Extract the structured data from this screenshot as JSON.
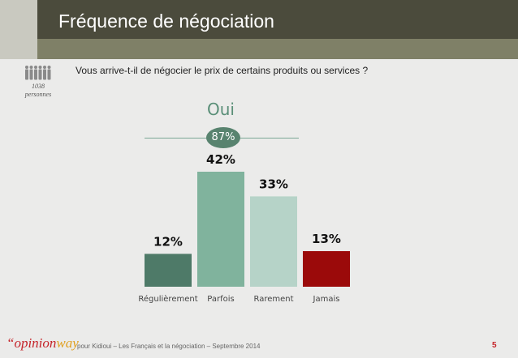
{
  "header": {
    "title": "Fréquence de négociation"
  },
  "sample": {
    "count": "1038",
    "unit": "personnes"
  },
  "question": "Vous arrive-t-il de négocier le prix de certains produits ou services ?",
  "oui": {
    "label": "Oui",
    "value": "87%"
  },
  "chart_data": {
    "type": "bar",
    "categories": [
      "Régulièrement",
      "Parfois",
      "Rarement",
      "Jamais"
    ],
    "values": [
      12,
      42,
      33,
      13
    ],
    "data_labels": [
      "12%",
      "42%",
      "33%",
      "13%"
    ],
    "colors": [
      "#4e7a68",
      "#80b39d",
      "#b6d3c8",
      "#9b0a0a"
    ],
    "ylim": [
      0,
      42
    ],
    "grid": false,
    "legend": "none"
  },
  "footer": {
    "logo_main": "“opinion",
    "logo_accent": "way",
    "source": "pour Kidioui – Les Français et la négociation – Septembre 2014",
    "page": "5"
  }
}
